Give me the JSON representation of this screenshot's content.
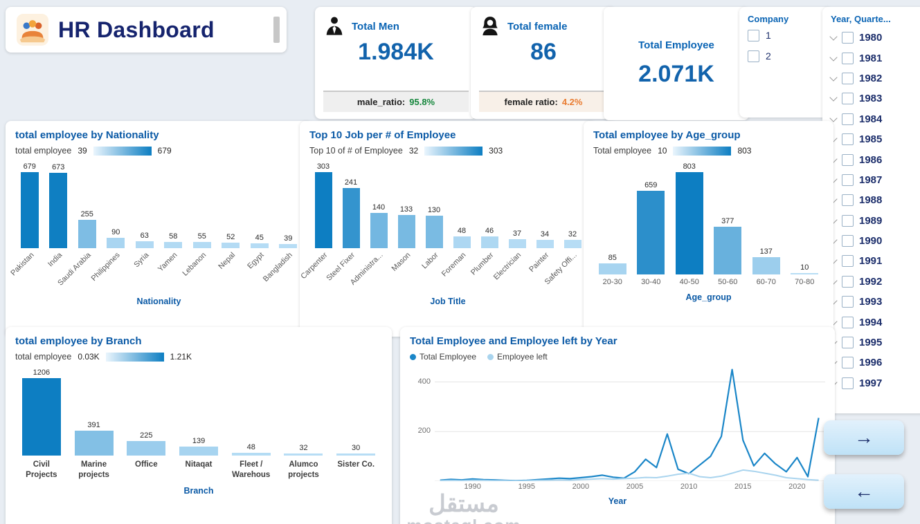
{
  "app": {
    "title": "HR Dashboard"
  },
  "kpi_cards": {
    "men": {
      "label": "Total Men",
      "value": "1.984K",
      "ratio_label": "male_ratio:",
      "ratio_value": "95.8%"
    },
    "female": {
      "label": "Total female",
      "value": "86",
      "ratio_label": "female ratio:",
      "ratio_value": "4.2%"
    },
    "total_employee": {
      "label": "Total Employee",
      "value": "2.071K"
    }
  },
  "slicers": {
    "company": {
      "title": "Company",
      "options": [
        "1",
        "2"
      ]
    },
    "year": {
      "title": "Year, Quarte...",
      "items": [
        "1980",
        "1981",
        "1982",
        "1983",
        "1984",
        "1985",
        "1986",
        "1987",
        "1988",
        "1989",
        "1990",
        "1991",
        "1992",
        "1993",
        "1994",
        "1995",
        "1996",
        "1997"
      ]
    }
  },
  "nav": {
    "next": "→",
    "prev": "←"
  },
  "watermark": {
    "line1": "مستقل",
    "line2": "mostaql.com"
  },
  "colors": {
    "bar_light": "#b7ddf5",
    "bar_dark": "#0d7ec2",
    "series_total": "#1a86c8",
    "series_left": "#a9d4ee",
    "title_blue": "#0a64b4",
    "navy": "#16246e"
  },
  "chart_data": [
    {
      "type": "bar",
      "title": "total employee by Nationality",
      "legend_label": "total employee",
      "legend_min": "39",
      "legend_max": "679",
      "categories": [
        "Pakistan",
        "India",
        "Saudi Arabia",
        "Philippines",
        "Syria",
        "Yamen",
        "Lebanon",
        "Nepal",
        "Egypt",
        "Bangladish"
      ],
      "values": [
        679,
        673,
        255,
        90,
        63,
        58,
        55,
        52,
        45,
        39
      ],
      "xlabel": "Nationality"
    },
    {
      "type": "bar",
      "title": "Top 10 Job per # of Employee",
      "legend_label": "Top 10 of # of Employee",
      "legend_min": "32",
      "legend_max": "303",
      "categories": [
        "Carpenter",
        "Steel Fixer",
        "Administra...",
        "Mason",
        "Labor",
        "Foreman",
        "Plumber",
        "Electrician",
        "Painter",
        "Safety Offi..."
      ],
      "values": [
        303,
        241,
        140,
        133,
        130,
        48,
        46,
        37,
        34,
        32
      ],
      "xlabel": "Job Title"
    },
    {
      "type": "bar",
      "title": "Total employee by Age_group",
      "legend_label": "Total employee",
      "legend_min": "10",
      "legend_max": "803",
      "categories": [
        "20-30",
        "30-40",
        "40-50",
        "50-60",
        "60-70",
        "70-80"
      ],
      "values": [
        85,
        659,
        803,
        377,
        137,
        10
      ],
      "xlabel": "Age_group"
    },
    {
      "type": "bar",
      "title": "total employee by Branch",
      "legend_label": "total employee",
      "legend_min": "0.03K",
      "legend_max": "1.21K",
      "categories": [
        "Civil Projects",
        "Marine projects",
        "Office",
        "Nitaqat",
        "Fleet / Warehous",
        "Alumco projects",
        "Sister Co."
      ],
      "values": [
        1206,
        391,
        225,
        139,
        48,
        32,
        30
      ],
      "xlabel": "Branch"
    },
    {
      "type": "line",
      "title": "Total Employee and Employee left by Year",
      "xlabel": "Year",
      "x": [
        1987,
        1988,
        1989,
        1990,
        1991,
        1992,
        1993,
        1994,
        1995,
        1996,
        1997,
        1998,
        1999,
        2000,
        2001,
        2002,
        2003,
        2004,
        2005,
        2006,
        2007,
        2008,
        2009,
        2010,
        2011,
        2012,
        2013,
        2014,
        2015,
        2016,
        2017,
        2018,
        2019,
        2020,
        2021,
        2022
      ],
      "series": [
        {
          "name": "Total Employee",
          "color": "#1a86c8",
          "values": [
            4,
            7,
            5,
            9,
            6,
            5,
            3,
            2,
            3,
            6,
            9,
            12,
            10,
            14,
            18,
            24,
            16,
            12,
            38,
            88,
            55,
            190,
            48,
            30,
            65,
            100,
            180,
            450,
            165,
            62,
            112,
            70,
            38,
            95,
            18,
            255
          ]
        },
        {
          "name": "Employee left",
          "color": "#a9d4ee",
          "values": [
            2,
            3,
            2,
            4,
            3,
            2,
            2,
            1,
            2,
            3,
            4,
            5,
            4,
            6,
            8,
            10,
            8,
            10,
            12,
            15,
            14,
            20,
            28,
            32,
            18,
            14,
            20,
            32,
            45,
            40,
            32,
            24,
            14,
            10,
            6,
            4
          ]
        }
      ],
      "xticks": [
        1990,
        1995,
        2000,
        2005,
        2010,
        2015,
        2020
      ],
      "yticks": [
        200,
        400
      ],
      "xlim": [
        1986.5,
        2022.6
      ],
      "ylim": [
        0,
        460
      ]
    }
  ]
}
